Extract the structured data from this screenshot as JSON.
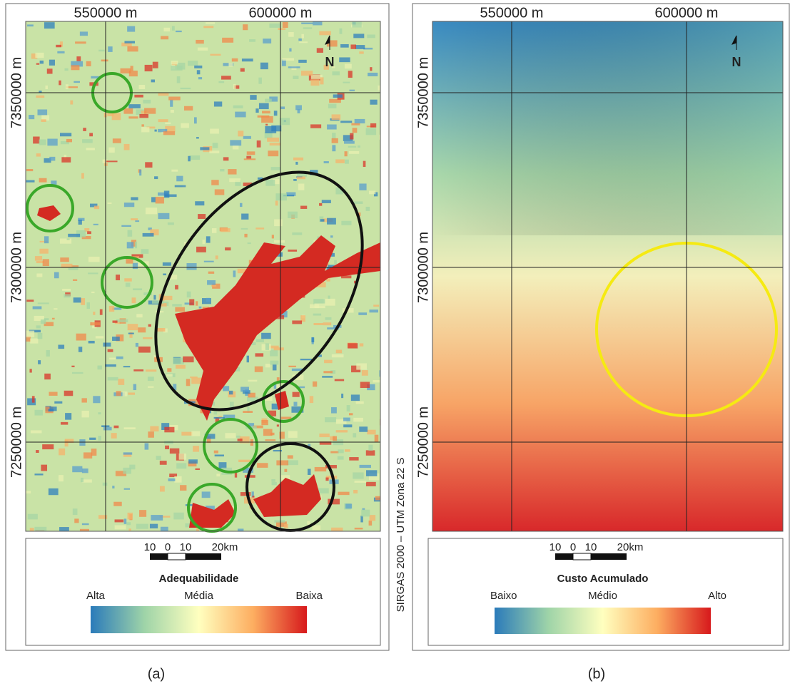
{
  "panels": [
    {
      "caption": "(a)",
      "x_labels": [
        "550000 m",
        "600000 m"
      ],
      "y_labels": [
        "7350000 m",
        "7300000 m",
        "7250000 m"
      ],
      "north": "N",
      "scale_labels": [
        "10",
        "0",
        "10",
        "20km"
      ],
      "legend_title": "Adequabilidade",
      "legend_labels": [
        "Alta",
        "Média",
        "Baixa"
      ]
    },
    {
      "caption": "(b)",
      "x_labels": [
        "550000 m",
        "600000 m"
      ],
      "y_labels": [
        "7350000 m",
        "7300000 m",
        "7250000 m"
      ],
      "north": "N",
      "scale_labels": [
        "10",
        "0",
        "10",
        "20km"
      ],
      "legend_title": "Custo Acumulado",
      "legend_labels": [
        "Baixo",
        "Médio",
        "Alto"
      ]
    }
  ],
  "crs_note": "SIRGAS 2000 – UTM Zona 22 S"
}
